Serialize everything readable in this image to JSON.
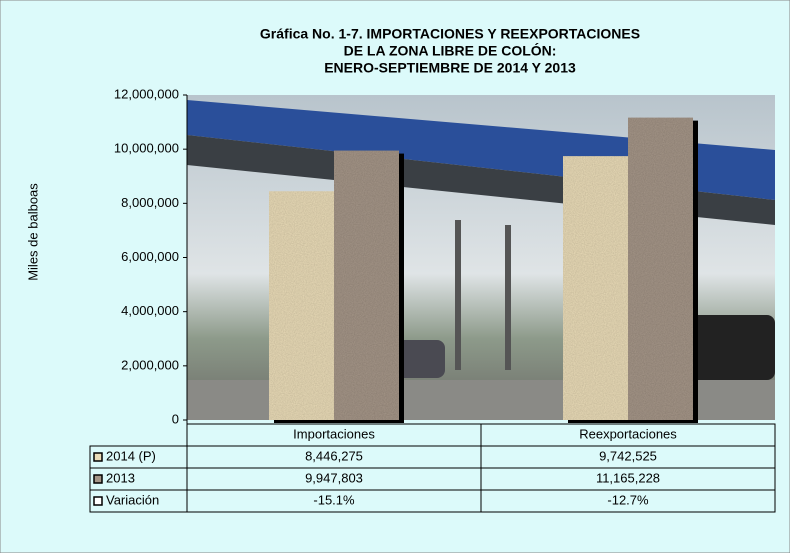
{
  "chart_data": {
    "type": "bar",
    "title": [
      "Gráfica No. 1-7.  IMPORTACIONES Y REEXPORTACIONES",
      "DE LA ZONA LIBRE DE COLÓN:",
      "ENERO-SEPTIEMBRE DE 2014 Y 2013"
    ],
    "y_label": "Miles de balboas",
    "categories": [
      "Importaciones",
      "Reexportaciones"
    ],
    "series": [
      {
        "name": "2014 (P)",
        "color": "#eadcb8",
        "values": [
          8446275,
          9742525
        ],
        "value_labels": [
          "8,446,275",
          "9,742,525"
        ]
      },
      {
        "name": "2013",
        "color": "#a59688",
        "values": [
          9947803,
          11165228
        ],
        "value_labels": [
          "9,947,803",
          "11,165,228"
        ]
      }
    ],
    "variation": {
      "name": "Variación",
      "values": [
        -15.1,
        -12.7
      ],
      "value_labels": [
        "-15.1%",
        "-12.7%"
      ]
    },
    "ylim": [
      0,
      12000000
    ],
    "yticks": [
      {
        "value": 0,
        "label": "0"
      },
      {
        "value": 2000000,
        "label": "2,000,000"
      },
      {
        "value": 4000000,
        "label": "4,000,000"
      },
      {
        "value": 6000000,
        "label": "6,000,000"
      },
      {
        "value": 8000000,
        "label": "8,000,000"
      },
      {
        "value": 10000000,
        "label": "10,000,000"
      },
      {
        "value": 12000000,
        "label": "12,000,000"
      }
    ]
  }
}
